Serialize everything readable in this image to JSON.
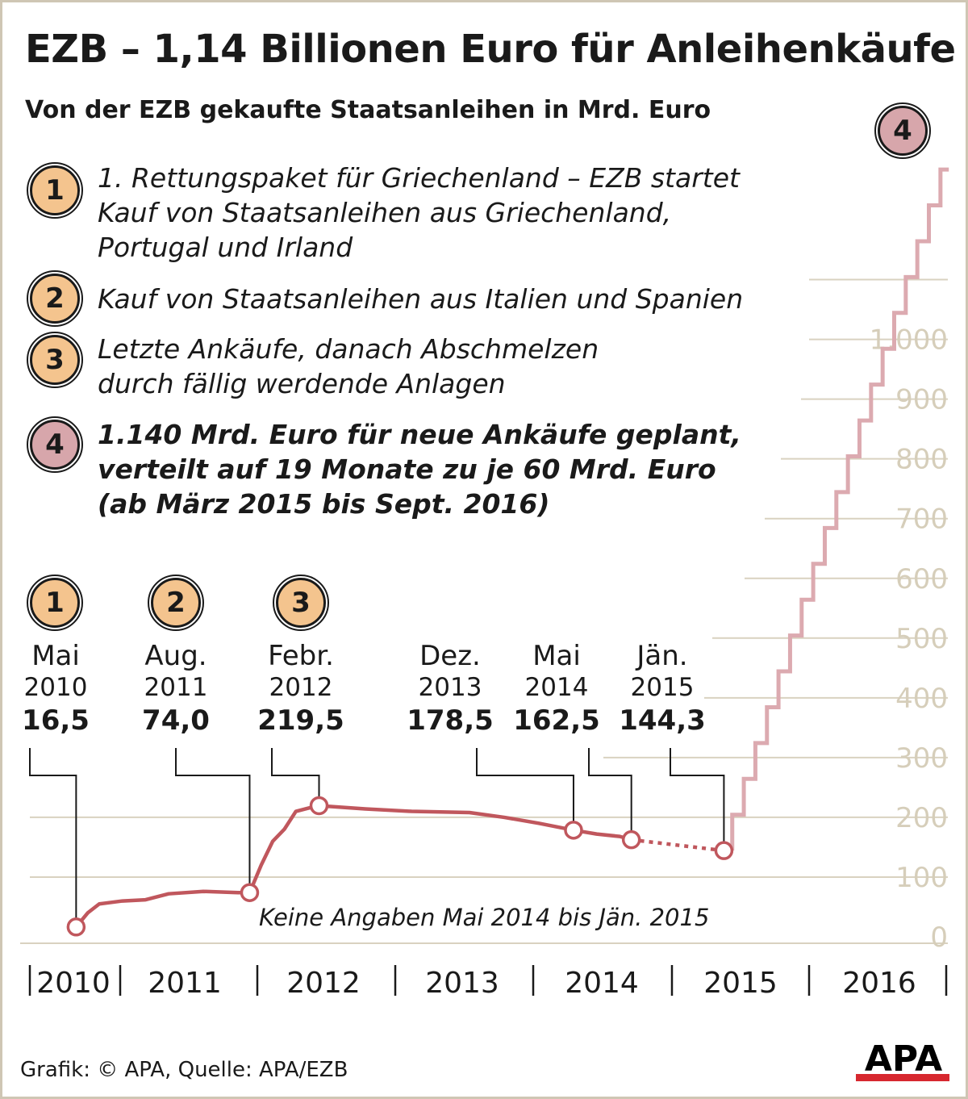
{
  "title": "EZB – 1,14 Billionen Euro für Anleihenkäufe",
  "subtitle": "Von der EZB gekaufte Staatsanleihen in Mrd. Euro",
  "notes": [
    {
      "badge": "1",
      "lines": [
        "1. Rettungspaket für Griechenland – EZB startet",
        "Kauf von Staatsanleihen aus Griechenland,",
        "Portugal und Irland"
      ]
    },
    {
      "badge": "2",
      "lines": [
        "Kauf von Staatsanleihen aus Italien und Spanien"
      ]
    },
    {
      "badge": "3",
      "lines": [
        "Letzte Ankäufe, danach Abschmelzen",
        "durch fällig werdende Anlagen"
      ]
    },
    {
      "badge": "4",
      "lines": [
        "1.140 Mrd. Euro für neue Ankäufe geplant,",
        "verteilt auf 19 Monate zu je 60 Mrd. Euro",
        "(ab März 2015 bis Sept. 2016)"
      ]
    }
  ],
  "colors": {
    "line": "#c0575d",
    "plan": "#dcaab0",
    "badge": "#f4c48e",
    "badge_plan": "#d7a6ab",
    "grid": "#d9d2c0"
  },
  "chart_data": {
    "type": "line",
    "ylim": [
      0,
      1150
    ],
    "yticks": [
      0,
      100,
      200,
      300,
      400,
      500,
      600,
      700,
      800,
      900,
      1000,
      1100
    ],
    "ytick_labels": [
      "0",
      "100",
      "200",
      "300",
      "400",
      "500",
      "600",
      "700",
      "800",
      "900",
      "1.000",
      ""
    ],
    "x_years": [
      "2010",
      "2011",
      "2012",
      "2013",
      "2014",
      "2015",
      "2016"
    ],
    "xlim": [
      "2010-05",
      "2016-10"
    ],
    "grid": true,
    "series": [
      {
        "values": [
          [
            "2010-05",
            16.5
          ],
          [
            "2010-06",
            40
          ],
          [
            "2010-07",
            55
          ],
          [
            "2010-09",
            60
          ],
          [
            "2010-11",
            62
          ],
          [
            "2011-01",
            72
          ],
          [
            "2011-04",
            76
          ],
          [
            "2011-07",
            74
          ],
          [
            "2011-08",
            74.0
          ],
          [
            "2011-09",
            120
          ],
          [
            "2011-10",
            160
          ],
          [
            "2011-11",
            180
          ],
          [
            "2011-12",
            210
          ],
          [
            "2012-01",
            215
          ],
          [
            "2012-02",
            219.5
          ],
          [
            "2012-06",
            214
          ],
          [
            "2012-10",
            210
          ],
          [
            "2013-03",
            208
          ],
          [
            "2013-06",
            200
          ],
          [
            "2013-09",
            190
          ],
          [
            "2013-12",
            178.5
          ],
          [
            "2014-02",
            172
          ],
          [
            "2014-04",
            168
          ],
          [
            "2014-05",
            162.5
          ]
        ]
      },
      {
        "style": "dotted",
        "values": [
          [
            "2014-05",
            162.5
          ],
          [
            "2015-01",
            144.3
          ]
        ]
      },
      {
        "style": "plan-steps",
        "start": [
          "2015-02",
          144.3
        ],
        "monthly_increment": 60,
        "months": 19,
        "end": [
          "2016-09",
          1284.3
        ]
      }
    ],
    "events": [
      {
        "badge": "1",
        "month": "Mai",
        "year": "2010",
        "value": "16,5",
        "date": "2010-05",
        "y": 16.5
      },
      {
        "badge": "2",
        "month": "Aug.",
        "year": "2011",
        "value": "74,0",
        "date": "2011-08",
        "y": 74.0
      },
      {
        "badge": "3",
        "month": "Febr.",
        "year": "2012",
        "value": "219,5",
        "date": "2012-02",
        "y": 219.5
      },
      {
        "month": "Dez.",
        "year": "2013",
        "value": "178,5",
        "date": "2013-12",
        "y": 178.5
      },
      {
        "month": "Mai",
        "year": "2014",
        "value": "162,5",
        "date": "2014-05",
        "y": 162.5
      },
      {
        "month": "Jän.",
        "year": "2015",
        "value": "144,3",
        "date": "2015-01",
        "y": 144.3
      }
    ],
    "annotation": "Keine Angaben Mai 2014 bis Jän. 2015",
    "plan_badge": "4"
  },
  "source": "Grafik: © APA, Quelle: APA/EZB",
  "logo": "APA"
}
